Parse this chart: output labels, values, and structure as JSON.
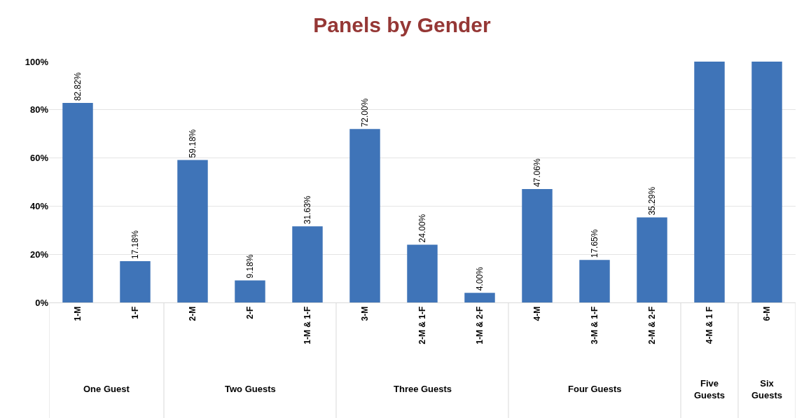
{
  "chart_data": {
    "type": "bar",
    "title": "Panels by Gender",
    "categories": [
      "1-M",
      "1-F",
      "2-M",
      "2-F",
      "1-M & 1-F",
      "3-M",
      "2-M & 1-F",
      "1-M & 2-F",
      "4-M",
      "3-M & 1-F",
      "2-M & 2-F",
      "4-M & 1 F",
      "6-M"
    ],
    "values": [
      82.82,
      17.18,
      59.18,
      9.18,
      31.63,
      72.0,
      24.0,
      4.0,
      47.06,
      17.65,
      35.29,
      100,
      100
    ],
    "value_labels": [
      "82.82%",
      "17.18%",
      "59.18%",
      "9.18%",
      "31.63%",
      "72.00%",
      "24.00%",
      "4.00%",
      "47.06%",
      "17.65%",
      "35.29%",
      null,
      null
    ],
    "color": "#3f74b8",
    "ylim": [
      0,
      100
    ],
    "yticks": [
      {
        "value": 0,
        "label": "0%"
      },
      {
        "value": 20,
        "label": "20%"
      },
      {
        "value": 40,
        "label": "40%"
      },
      {
        "value": 60,
        "label": "60%"
      },
      {
        "value": 80,
        "label": "80%"
      },
      {
        "value": 100,
        "label": "100%"
      }
    ],
    "grid": "y",
    "annotations": [
      "One Guest",
      "Two Guests",
      "Three Guests",
      "Four Guests",
      "Five Guests",
      "Six Guests"
    ]
  }
}
